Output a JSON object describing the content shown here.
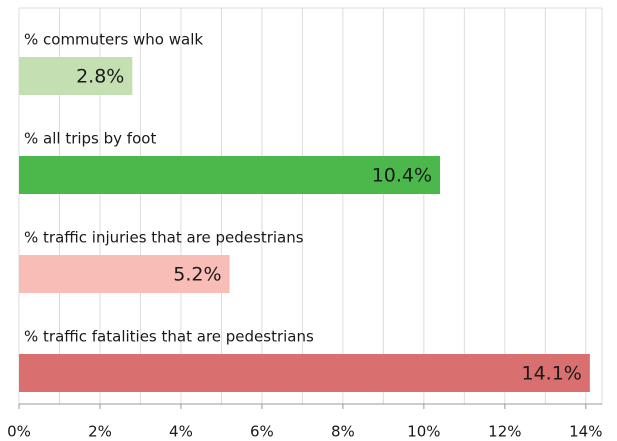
{
  "chart_data": {
    "type": "bar",
    "orientation": "horizontal",
    "categories": [
      "% commuters who walk",
      "% all trips by foot",
      "% traffic injuries that are pedestrians",
      "% traffic fatalities that are pedestrians"
    ],
    "values": [
      2.8,
      10.4,
      5.2,
      14.1
    ],
    "value_labels": [
      "2.8%",
      "10.4%",
      "5.2%",
      "14.1%"
    ],
    "colors": [
      "#c4e0b3",
      "#4cb84b",
      "#f9bdb7",
      "#d96f6f"
    ],
    "xlim": [
      0,
      14.4
    ],
    "xticks": [
      {
        "value": 0,
        "label": "0%"
      },
      {
        "value": 2,
        "label": "2%"
      },
      {
        "value": 4,
        "label": "4%"
      },
      {
        "value": 6,
        "label": "6%"
      },
      {
        "value": 8,
        "label": "8%"
      },
      {
        "value": 10,
        "label": "10%"
      },
      {
        "value": 12,
        "label": "12%"
      },
      {
        "value": 14,
        "label": "14%"
      }
    ],
    "xminor": [
      1,
      3,
      5,
      7,
      9,
      11,
      13
    ],
    "grid": true
  }
}
